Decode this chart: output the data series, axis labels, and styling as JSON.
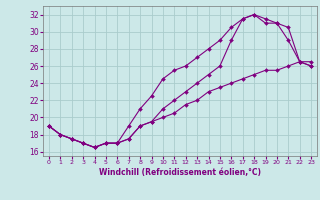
{
  "xlabel": "Windchill (Refroidissement éolien,°C)",
  "ylabel": "",
  "bg_color": "#cce8e8",
  "grid_color": "#aacccc",
  "line_color": "#800080",
  "xlim": [
    -0.5,
    23.5
  ],
  "ylim": [
    15.5,
    33.0
  ],
  "xticks": [
    0,
    1,
    2,
    3,
    4,
    5,
    6,
    7,
    8,
    9,
    10,
    11,
    12,
    13,
    14,
    15,
    16,
    17,
    18,
    19,
    20,
    21,
    22,
    23
  ],
  "yticks": [
    16,
    18,
    20,
    22,
    24,
    26,
    28,
    30,
    32
  ],
  "line1_x": [
    0,
    1,
    2,
    3,
    4,
    5,
    6,
    7,
    8,
    9,
    10,
    11,
    12,
    13,
    14,
    15,
    16,
    17,
    18,
    19,
    20,
    21,
    22,
    23
  ],
  "line1_y": [
    19,
    18,
    17.5,
    17,
    16.5,
    17,
    17,
    19,
    21,
    22.5,
    24.5,
    25.5,
    26,
    27,
    28,
    29,
    30.5,
    31.5,
    32,
    31.5,
    31,
    29,
    26.5,
    26
  ],
  "line2_x": [
    0,
    1,
    2,
    3,
    4,
    5,
    6,
    7,
    8,
    9,
    10,
    11,
    12,
    13,
    14,
    15,
    16,
    17,
    18,
    19,
    20,
    21,
    22,
    23
  ],
  "line2_y": [
    19,
    18,
    17.5,
    17,
    16.5,
    17,
    17,
    17.5,
    19,
    19.5,
    21,
    22,
    23,
    24,
    25,
    26,
    29,
    31.5,
    32,
    31,
    31,
    30.5,
    26.5,
    26
  ],
  "line3_x": [
    0,
    1,
    2,
    3,
    4,
    5,
    6,
    7,
    8,
    9,
    10,
    11,
    12,
    13,
    14,
    15,
    16,
    17,
    18,
    19,
    20,
    21,
    22,
    23
  ],
  "line3_y": [
    19,
    18,
    17.5,
    17,
    16.5,
    17,
    17,
    17.5,
    19,
    19.5,
    20,
    20.5,
    21.5,
    22,
    23,
    23.5,
    24,
    24.5,
    25,
    25.5,
    25.5,
    26,
    26.5,
    26.5
  ]
}
